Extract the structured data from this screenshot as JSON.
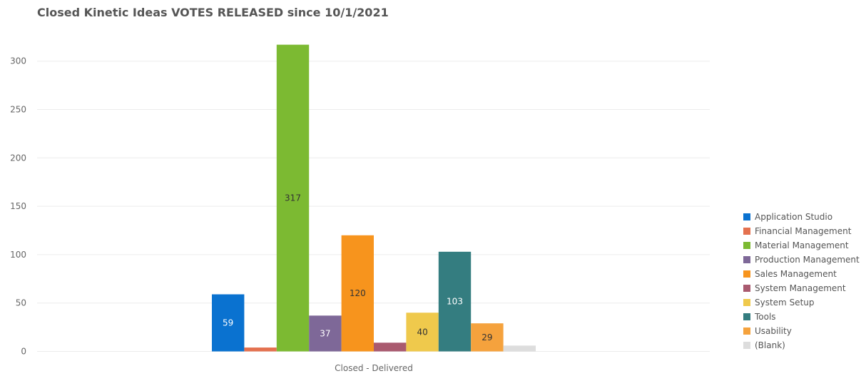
{
  "chart_data": {
    "type": "bar",
    "title": "Closed Kinetic Ideas VOTES RELEASED since 10/1/2021",
    "xlabel": "",
    "ylabel": "",
    "categories": [
      "Closed - Delivered"
    ],
    "ylim": [
      0,
      320
    ],
    "yticks": [
      0,
      50,
      100,
      150,
      200,
      250,
      300
    ],
    "grid": true,
    "legend_position": "right",
    "series": [
      {
        "name": "Application Studio",
        "values": [
          59
        ],
        "color": "#0a72d0",
        "label": "59",
        "label_color": "#ffffff"
      },
      {
        "name": "Financial Management",
        "values": [
          4
        ],
        "color": "#e4714f",
        "label": "",
        "label_color": "#333333"
      },
      {
        "name": "Material Management",
        "values": [
          317
        ],
        "color": "#7cba32",
        "label": "317",
        "label_color": "#333333"
      },
      {
        "name": "Production Management",
        "values": [
          37
        ],
        "color": "#7e6898",
        "label": "37",
        "label_color": "#ffffff"
      },
      {
        "name": "Sales Management",
        "values": [
          120
        ],
        "color": "#f7941d",
        "label": "120",
        "label_color": "#333333"
      },
      {
        "name": "System Management",
        "values": [
          9
        ],
        "color": "#a95a6f",
        "label": "",
        "label_color": "#333333"
      },
      {
        "name": "System Setup",
        "values": [
          40
        ],
        "color": "#efc94c",
        "label": "40",
        "label_color": "#333333"
      },
      {
        "name": "Tools",
        "values": [
          103
        ],
        "color": "#347d80",
        "label": "103",
        "label_color": "#ffffff"
      },
      {
        "name": "Usability",
        "values": [
          29
        ],
        "color": "#f5a23d",
        "label": "29",
        "label_color": "#333333"
      },
      {
        "name": "(Blank)",
        "values": [
          6
        ],
        "color": "#dddddd",
        "label": "",
        "label_color": "#333333"
      }
    ]
  }
}
